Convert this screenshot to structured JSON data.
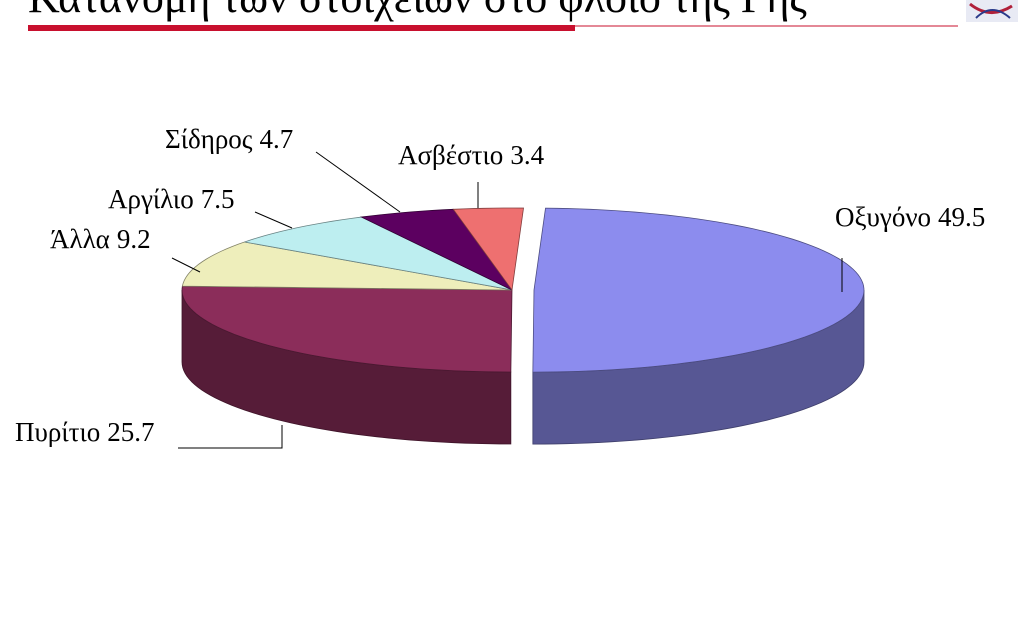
{
  "chart_data": {
    "type": "pie3d",
    "title": "Κατανομή των στοιχείων στο φλοιό της Γης",
    "categories": [
      "Οξυγόνο",
      "Πυρίτιο",
      "Άλλα",
      "Αργίλιο",
      "Σίδηρος",
      "Ασβέστιο"
    ],
    "values": [
      49.5,
      25.7,
      9.2,
      7.5,
      4.7,
      3.4
    ],
    "colors": [
      "#8c8cee",
      "#8b2d5a",
      "#eeeebb",
      "#bdeef0",
      "#5c0060",
      "#ee7070"
    ],
    "exploded": [
      true,
      false,
      false,
      false,
      false,
      false
    ]
  }
}
